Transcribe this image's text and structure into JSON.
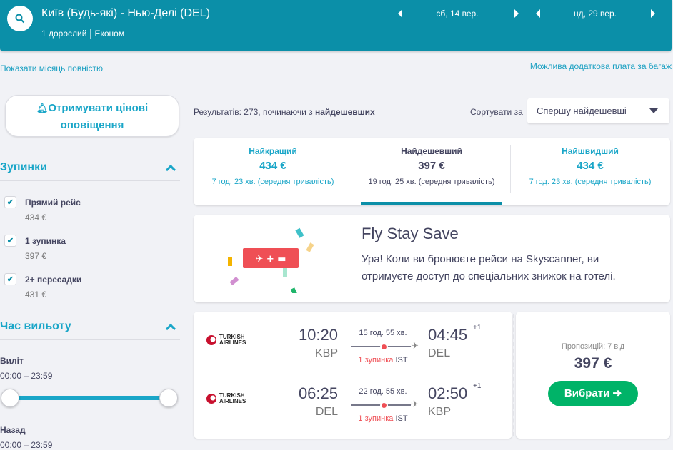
{
  "header": {
    "route": "Київ (Будь-які) - Нью-Делі (DEL)",
    "passengers": "1 дорослий",
    "cabin": "Економ",
    "depart_date": "сб, 14 вер.",
    "return_date": "нд, 29 вер.",
    "brand_color": "#0b8fa8"
  },
  "links": {
    "show_month": "Показати місяць повністю",
    "baggage": "Можлива додаткова плата за багаж"
  },
  "sidebar": {
    "alerts_button": "Отримувати цінові оповіщення",
    "stops": {
      "title": "Зупинки",
      "items": [
        {
          "label": "Прямий рейс",
          "price": "434 €",
          "checked": true
        },
        {
          "label": "1 зупинка",
          "price": "397 €",
          "checked": true
        },
        {
          "label": "2+ пересадки",
          "price": "431 €",
          "checked": true
        }
      ]
    },
    "departure_time": {
      "title": "Час вильоту",
      "outbound_label": "Виліт",
      "outbound_range": "00:00 – 23:59",
      "return_label": "Назад",
      "return_range": "00:00 – 23:59"
    }
  },
  "results": {
    "summary_prefix": "Результатів: 273, починаючи з ",
    "summary_bold": "найдешевших",
    "sort_label": "Сортувати за",
    "sort_value": "Спершу найдешевші"
  },
  "tabs": [
    {
      "title": "Найкращий",
      "price": "434 €",
      "duration": "7 год. 23 хв. (середня тривалість)",
      "active": false
    },
    {
      "title": "Найдешевший",
      "price": "397 €",
      "duration": "19 год. 25 хв. (середня тривалість)",
      "active": true
    },
    {
      "title": "Найшвидший",
      "price": "434 €",
      "duration": "7 год. 23 хв. (середня тривалість)",
      "active": false
    }
  ],
  "promo": {
    "title": "Fly Stay Save",
    "text": "Ура! Коли ви бронюєте рейси на Skyscanner, ви отримуєте доступ до спеціальних знижок на готелі."
  },
  "flight": {
    "legs": [
      {
        "airline": "TURKISH AIRLINES",
        "dep_time": "10:20",
        "dep_code": "KBP",
        "duration": "15 год. 55 хв.",
        "stops": "1 зупинка",
        "via": "IST",
        "arr_time": "04:45",
        "arr_code": "DEL",
        "day_offset": "+1"
      },
      {
        "airline": "TURKISH AIRLINES",
        "dep_time": "06:25",
        "dep_code": "DEL",
        "duration": "22 год. 55 хв.",
        "stops": "1 зупинка",
        "via": "IST",
        "arr_time": "02:50",
        "arr_code": "KBP",
        "day_offset": "+1"
      }
    ],
    "offers": "Пропозицій: 7 від",
    "price": "397 €",
    "select_button": "Вибрати ➔"
  }
}
